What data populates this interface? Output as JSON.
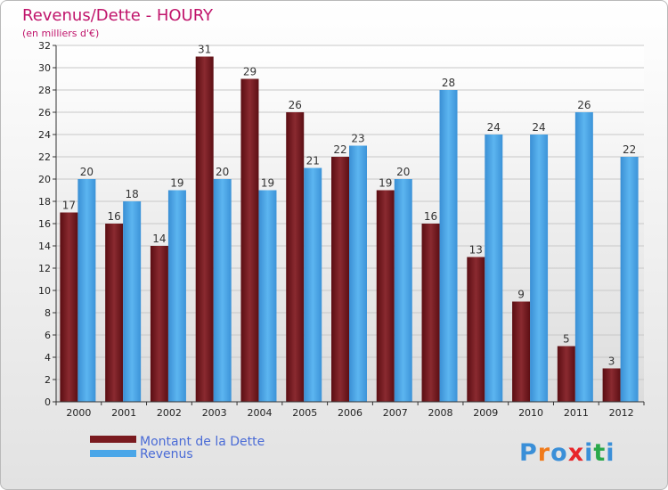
{
  "chart_data": {
    "type": "bar",
    "title": "Revenus/Dette - HOURY",
    "subtitle": "(en milliers d'€)",
    "categories": [
      "2000",
      "2001",
      "2002",
      "2003",
      "2004",
      "2005",
      "2006",
      "2007",
      "2008",
      "2009",
      "2010",
      "2011",
      "2012"
    ],
    "series": [
      {
        "name": "Montant de la Dette",
        "color": "#7a1a1f",
        "values": [
          17,
          16,
          14,
          31,
          29,
          26,
          22,
          19,
          16,
          13,
          9,
          5,
          3
        ]
      },
      {
        "name": "Revenus",
        "color": "#4aa6e8",
        "values": [
          20,
          18,
          19,
          20,
          19,
          21,
          23,
          20,
          28,
          24,
          24,
          26,
          22
        ]
      }
    ],
    "ylim": [
      0,
      32
    ],
    "yticks": [
      0,
      2,
      4,
      6,
      8,
      10,
      12,
      14,
      16,
      18,
      20,
      22,
      24,
      26,
      28,
      30,
      32
    ],
    "grid": true,
    "legend_position": "bottom-left",
    "xlabel": "",
    "ylabel": ""
  },
  "logo": {
    "text": "Proxiti",
    "letters": [
      "P",
      "r",
      "o",
      "x",
      "i",
      "t",
      "i"
    ],
    "colors": [
      "#3a8fd8",
      "#f07a1a",
      "#3a8fd8",
      "#e8262a",
      "#3a8fd8",
      "#2aa84a",
      "#3a8fd8"
    ]
  }
}
